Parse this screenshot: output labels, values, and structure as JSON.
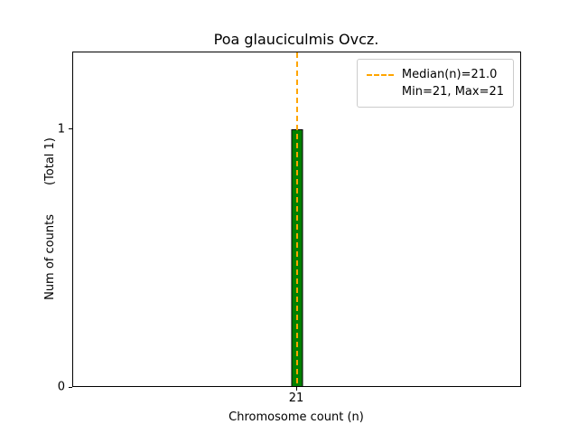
{
  "chart_data": {
    "type": "bar",
    "title": "Poa glauciculmis Ovcz.",
    "xlabel": "Chromosome count (n)",
    "ylabel": "Num of counts    (Total 1)",
    "categories": [
      21
    ],
    "values": [
      1
    ],
    "total_counts": 1,
    "median": 21.0,
    "min": 21,
    "max": 21,
    "ylim": [
      0,
      1.3
    ],
    "yticks": [
      {
        "value": 0,
        "label": "0"
      },
      {
        "value": 1,
        "label": "1"
      }
    ],
    "xticks": [
      {
        "value": 21,
        "label": "21"
      }
    ],
    "grid": false,
    "bar_color": "#008000",
    "bar_edge_color": "#000000",
    "median_line_color": "#ffa500",
    "legend": {
      "position": "upper-right",
      "entries": [
        "Median(n)=21.0",
        "Min=21, Max=21"
      ]
    }
  },
  "labels": {
    "ylabel_main": "Num of counts",
    "ylabel_note": "(Total 1)"
  }
}
